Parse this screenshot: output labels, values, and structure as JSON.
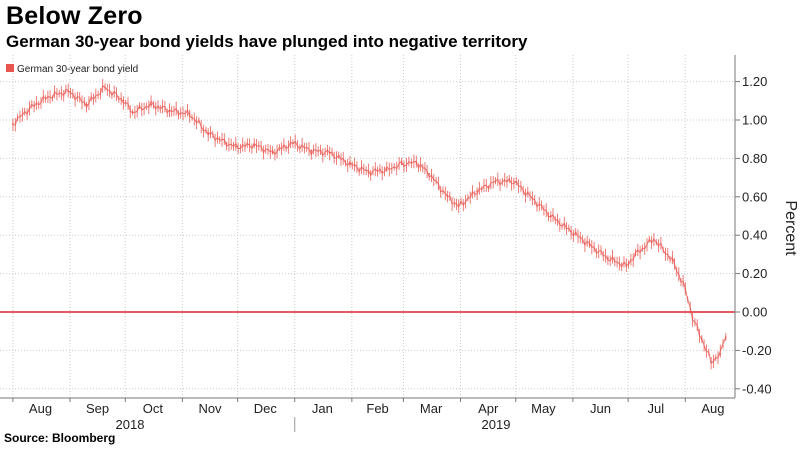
{
  "header": {
    "title": "Below Zero",
    "subtitle": "German 30-year bond yields have plunged into negative territory"
  },
  "footer": {
    "source": "Source: Bloomberg"
  },
  "colors": {
    "series": "#e8544e",
    "zero_line": "#e0242b",
    "grid": "#cccccc",
    "axis": "#777777"
  },
  "chart_data": {
    "type": "line",
    "title": "Below Zero",
    "subtitle": "German 30-year bond yields have plunged into negative territory",
    "ylabel": "Percent",
    "xlabel": "",
    "ylim": [
      -0.42,
      1.32
    ],
    "yticks": [
      1.2,
      1.0,
      0.8,
      0.6,
      0.4,
      0.2,
      0.0,
      -0.2,
      -0.4
    ],
    "ytick_labels": [
      "1.20",
      "1.00",
      "0.80",
      "0.60",
      "0.40",
      "0.20",
      "0.00",
      "-0.20",
      "-0.40"
    ],
    "reference_line": {
      "y": 0.0
    },
    "grid": true,
    "legend": {
      "position": "top-left",
      "entries": [
        "German 30-year bond yield"
      ]
    },
    "x_month_labels": [
      "Aug",
      "Sep",
      "Oct",
      "Nov",
      "Dec",
      "Jan",
      "Feb",
      "Mar",
      "Apr",
      "May",
      "Jun",
      "Jul",
      "Aug"
    ],
    "x_year_labels": [
      "2018",
      "2019"
    ],
    "series": [
      {
        "name": "German 30-year bond yield",
        "x": [
          "2018-08-01",
          "2018-08-10",
          "2018-08-20",
          "2018-08-31",
          "2018-09-10",
          "2018-09-20",
          "2018-09-30",
          "2018-10-05",
          "2018-10-15",
          "2018-10-25",
          "2018-11-05",
          "2018-11-15",
          "2018-11-25",
          "2018-11-30",
          "2018-12-10",
          "2018-12-20",
          "2018-12-31",
          "2019-01-10",
          "2019-01-20",
          "2019-01-31",
          "2019-02-10",
          "2019-02-20",
          "2019-02-28",
          "2019-03-08",
          "2019-03-15",
          "2019-03-25",
          "2019-03-31",
          "2019-04-10",
          "2019-04-20",
          "2019-04-30",
          "2019-05-10",
          "2019-05-20",
          "2019-05-31",
          "2019-06-10",
          "2019-06-20",
          "2019-06-30",
          "2019-07-05",
          "2019-07-15",
          "2019-07-25",
          "2019-08-01",
          "2019-08-05",
          "2019-08-10",
          "2019-08-15",
          "2019-08-20",
          "2019-08-23"
        ],
        "y": [
          0.98,
          1.06,
          1.12,
          1.15,
          1.08,
          1.17,
          1.1,
          1.04,
          1.08,
          1.05,
          1.03,
          0.93,
          0.88,
          0.86,
          0.87,
          0.83,
          0.88,
          0.84,
          0.83,
          0.77,
          0.73,
          0.74,
          0.77,
          0.78,
          0.72,
          0.6,
          0.55,
          0.63,
          0.68,
          0.68,
          0.59,
          0.5,
          0.42,
          0.35,
          0.28,
          0.24,
          0.3,
          0.38,
          0.27,
          0.12,
          -0.03,
          -0.14,
          -0.26,
          -0.22,
          -0.13
        ]
      }
    ]
  }
}
